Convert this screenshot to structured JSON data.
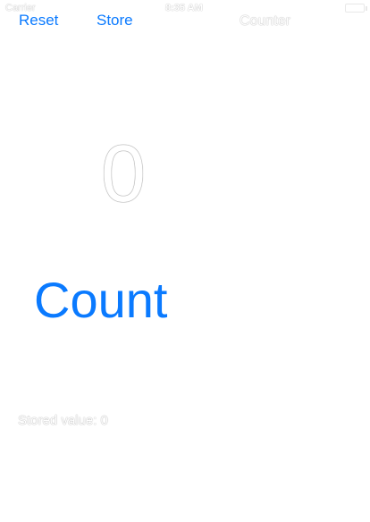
{
  "status_bar": {
    "carrier": "Carrier",
    "time": "8:35 AM"
  },
  "nav": {
    "reset_label": "Reset",
    "store_label": "Store",
    "title": "Counter"
  },
  "counter": {
    "value": "0",
    "count_label": "Count"
  },
  "stored": {
    "label": "Stored value: 0"
  },
  "colors": {
    "accent": "#0a7aff",
    "background": "#ffffff"
  }
}
